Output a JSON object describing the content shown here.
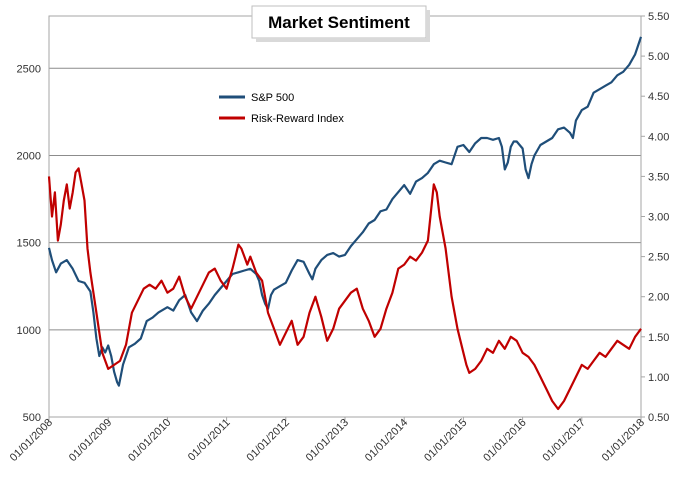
{
  "chart_data": {
    "type": "line",
    "title": "Market Sentiment",
    "grid": "horizontal",
    "legend_position": "top-center",
    "x_ticks": [
      "01/01/2008",
      "01/01/2009",
      "01/01/2010",
      "01/01/2011",
      "01/01/2012",
      "01/01/2013",
      "01/01/2014",
      "01/01/2015",
      "01/01/2016",
      "01/01/2017",
      "01/01/2018"
    ],
    "x_range": [
      2008.0,
      2018.0
    ],
    "y_left": {
      "ticks": [
        "500",
        "1000",
        "1500",
        "2000",
        "2500"
      ],
      "ylim": [
        500,
        2800
      ]
    },
    "y_right": {
      "ticks": [
        "0.50",
        "1.00",
        "1.50",
        "2.00",
        "2.50",
        "3.00",
        "3.50",
        "4.00",
        "4.50",
        "5.00",
        "5.50"
      ],
      "ylim": [
        0.5,
        5.5
      ]
    },
    "series": [
      {
        "name": "S&P 500",
        "axis": "left",
        "color": "#1f4e79",
        "x": [
          2008.0,
          2008.05,
          2008.12,
          2008.2,
          2008.3,
          2008.4,
          2008.5,
          2008.6,
          2008.7,
          2008.75,
          2008.8,
          2008.85,
          2008.9,
          2008.95,
          2009.0,
          2009.05,
          2009.1,
          2009.15,
          2009.18,
          2009.25,
          2009.35,
          2009.45,
          2009.55,
          2009.65,
          2009.75,
          2009.85,
          2010.0,
          2010.1,
          2010.2,
          2010.3,
          2010.4,
          2010.5,
          2010.6,
          2010.7,
          2010.8,
          2010.9,
          2011.0,
          2011.1,
          2011.2,
          2011.3,
          2011.4,
          2011.5,
          2011.55,
          2011.6,
          2011.65,
          2011.7,
          2011.75,
          2011.8,
          2011.9,
          2012.0,
          2012.1,
          2012.2,
          2012.3,
          2012.4,
          2012.45,
          2012.5,
          2012.6,
          2012.7,
          2012.8,
          2012.9,
          2013.0,
          2013.1,
          2013.2,
          2013.3,
          2013.4,
          2013.5,
          2013.6,
          2013.7,
          2013.8,
          2013.9,
          2014.0,
          2014.1,
          2014.2,
          2014.3,
          2014.4,
          2014.5,
          2014.6,
          2014.7,
          2014.8,
          2014.9,
          2015.0,
          2015.1,
          2015.2,
          2015.3,
          2015.4,
          2015.5,
          2015.6,
          2015.65,
          2015.7,
          2015.75,
          2015.8,
          2015.85,
          2015.9,
          2016.0,
          2016.05,
          2016.1,
          2016.15,
          2016.2,
          2016.3,
          2016.4,
          2016.5,
          2016.6,
          2016.7,
          2016.8,
          2016.85,
          2016.9,
          2017.0,
          2017.1,
          2017.2,
          2017.3,
          2017.4,
          2017.5,
          2017.6,
          2017.7,
          2017.8,
          2017.9,
          2018.0
        ],
        "values": [
          1470,
          1400,
          1330,
          1380,
          1400,
          1350,
          1280,
          1270,
          1220,
          1100,
          950,
          850,
          900,
          870,
          910,
          850,
          760,
          700,
          680,
          800,
          900,
          920,
          950,
          1050,
          1070,
          1100,
          1130,
          1110,
          1170,
          1200,
          1100,
          1050,
          1110,
          1150,
          1200,
          1240,
          1280,
          1320,
          1330,
          1340,
          1350,
          1320,
          1280,
          1200,
          1150,
          1120,
          1200,
          1230,
          1250,
          1270,
          1340,
          1400,
          1390,
          1320,
          1290,
          1350,
          1400,
          1430,
          1440,
          1420,
          1430,
          1480,
          1520,
          1560,
          1610,
          1630,
          1680,
          1690,
          1750,
          1790,
          1830,
          1780,
          1850,
          1870,
          1900,
          1950,
          1970,
          1960,
          1950,
          2050,
          2060,
          2020,
          2070,
          2100,
          2100,
          2090,
          2100,
          2050,
          1920,
          1960,
          2050,
          2080,
          2080,
          2040,
          1920,
          1870,
          1950,
          2000,
          2060,
          2080,
          2100,
          2150,
          2160,
          2130,
          2100,
          2200,
          2260,
          2280,
          2360,
          2380,
          2400,
          2420,
          2460,
          2480,
          2520,
          2580,
          2680
        ]
      },
      {
        "name": "Risk-Reward Index",
        "axis": "right",
        "color": "#c00000",
        "x": [
          2008.0,
          2008.05,
          2008.1,
          2008.15,
          2008.2,
          2008.25,
          2008.3,
          2008.35,
          2008.4,
          2008.45,
          2008.5,
          2008.55,
          2008.6,
          2008.65,
          2008.7,
          2008.8,
          2008.9,
          2009.0,
          2009.1,
          2009.2,
          2009.3,
          2009.4,
          2009.5,
          2009.6,
          2009.7,
          2009.8,
          2009.9,
          2010.0,
          2010.1,
          2010.2,
          2010.3,
          2010.4,
          2010.5,
          2010.6,
          2010.7,
          2010.8,
          2010.9,
          2011.0,
          2011.1,
          2011.15,
          2011.2,
          2011.25,
          2011.3,
          2011.35,
          2011.4,
          2011.5,
          2011.6,
          2011.7,
          2011.8,
          2011.9,
          2012.0,
          2012.1,
          2012.2,
          2012.3,
          2012.4,
          2012.5,
          2012.6,
          2012.7,
          2012.8,
          2012.9,
          2013.0,
          2013.1,
          2013.2,
          2013.3,
          2013.4,
          2013.5,
          2013.6,
          2013.7,
          2013.8,
          2013.9,
          2014.0,
          2014.1,
          2014.2,
          2014.3,
          2014.4,
          2014.5,
          2014.55,
          2014.6,
          2014.7,
          2014.8,
          2014.9,
          2015.0,
          2015.05,
          2015.1,
          2015.2,
          2015.3,
          2015.4,
          2015.5,
          2015.6,
          2015.7,
          2015.8,
          2015.9,
          2016.0,
          2016.1,
          2016.2,
          2016.3,
          2016.4,
          2016.5,
          2016.6,
          2016.7,
          2016.8,
          2016.9,
          2017.0,
          2017.1,
          2017.2,
          2017.3,
          2017.4,
          2017.5,
          2017.6,
          2017.7,
          2017.8,
          2017.9,
          2018.0
        ],
        "values": [
          3.5,
          3.0,
          3.3,
          2.7,
          2.9,
          3.2,
          3.4,
          3.1,
          3.3,
          3.55,
          3.6,
          3.4,
          3.2,
          2.6,
          2.3,
          1.8,
          1.3,
          1.1,
          1.15,
          1.2,
          1.4,
          1.8,
          1.95,
          2.1,
          2.15,
          2.1,
          2.2,
          2.05,
          2.1,
          2.25,
          2.0,
          1.85,
          2.0,
          2.15,
          2.3,
          2.35,
          2.2,
          2.1,
          2.35,
          2.5,
          2.65,
          2.6,
          2.5,
          2.4,
          2.5,
          2.3,
          2.2,
          1.8,
          1.6,
          1.4,
          1.55,
          1.7,
          1.4,
          1.5,
          1.8,
          2.0,
          1.75,
          1.45,
          1.6,
          1.85,
          1.95,
          2.05,
          2.1,
          1.85,
          1.7,
          1.5,
          1.6,
          1.85,
          2.05,
          2.35,
          2.4,
          2.5,
          2.45,
          2.55,
          2.7,
          3.4,
          3.3,
          3.0,
          2.6,
          2.0,
          1.6,
          1.3,
          1.15,
          1.05,
          1.1,
          1.2,
          1.35,
          1.3,
          1.45,
          1.35,
          1.5,
          1.45,
          1.3,
          1.25,
          1.15,
          1.0,
          0.85,
          0.7,
          0.6,
          0.7,
          0.85,
          1.0,
          1.15,
          1.1,
          1.2,
          1.3,
          1.25,
          1.35,
          1.45,
          1.4,
          1.35,
          1.5,
          1.6
        ]
      }
    ]
  }
}
